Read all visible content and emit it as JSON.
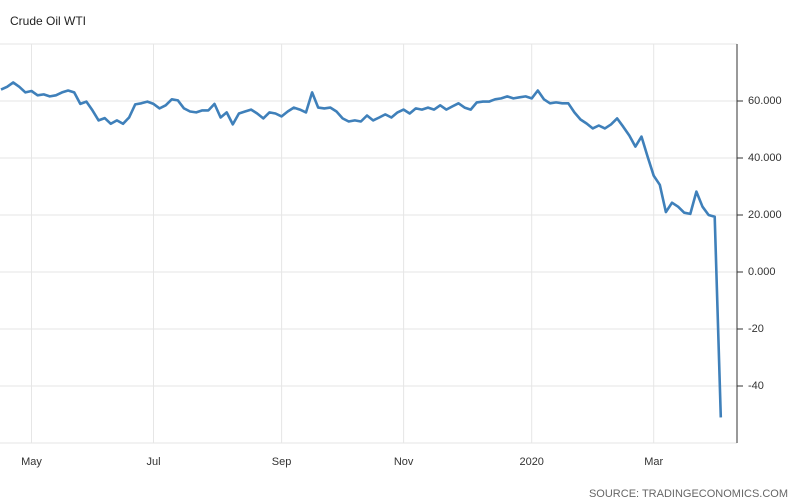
{
  "chart_data": {
    "type": "line",
    "title": "Crude Oil WTI",
    "source": "SOURCE: TRADINGECONOMICS.COM",
    "categories": [
      null,
      null,
      null,
      null,
      null,
      "May",
      null,
      null,
      null,
      null,
      null,
      null,
      null,
      null,
      null,
      null,
      null,
      null,
      null,
      null,
      null,
      null,
      null,
      null,
      null,
      "Jul",
      null,
      null,
      null,
      null,
      null,
      null,
      null,
      null,
      null,
      null,
      null,
      null,
      null,
      null,
      null,
      null,
      null,
      null,
      null,
      null,
      "Sep",
      null,
      null,
      null,
      null,
      null,
      null,
      null,
      null,
      null,
      null,
      null,
      null,
      null,
      null,
      null,
      null,
      null,
      null,
      null,
      "Nov",
      null,
      null,
      null,
      null,
      null,
      null,
      null,
      null,
      null,
      null,
      null,
      null,
      null,
      null,
      null,
      null,
      null,
      null,
      null,
      null,
      "2020",
      null,
      null,
      null,
      null,
      null,
      null,
      null,
      null,
      null,
      null,
      null,
      null,
      null,
      null,
      null,
      null,
      null,
      null,
      null,
      "Mar",
      null,
      null,
      null,
      null,
      null,
      null,
      null,
      null,
      null,
      null,
      null
    ],
    "values": [
      64,
      65,
      66.5,
      65,
      63,
      63.5,
      62,
      62.3,
      61.6,
      62,
      63,
      63.7,
      63,
      59,
      59.8,
      56.7,
      53.2,
      54,
      52,
      53.2,
      52,
      54.2,
      58.8,
      59.2,
      59.8,
      59,
      57.4,
      58.5,
      60.6,
      60.2,
      57.4,
      56.3,
      56,
      56.7,
      56.7,
      59,
      54.2,
      56,
      51.8,
      55.6,
      56.3,
      57,
      55.6,
      53.9,
      56,
      55.6,
      54.6,
      56.3,
      57.7,
      57,
      56,
      63,
      57.7,
      57.4,
      57.7,
      56.3,
      53.9,
      52.8,
      53.2,
      52.8,
      54.9,
      53.2,
      54.2,
      55.3,
      54.2,
      56,
      57,
      55.6,
      57.4,
      57,
      57.7,
      57,
      58.5,
      57,
      58.1,
      59.2,
      57.7,
      57,
      59.5,
      59.8,
      59.8,
      60.6,
      60.9,
      61.6,
      60.9,
      61.3,
      61.6,
      60.9,
      63.7,
      60.6,
      59.2,
      59.5,
      59.2,
      59.2,
      56,
      53.5,
      52.1,
      50.4,
      51.4,
      50.4,
      51.8,
      53.9,
      51,
      47.9,
      44,
      47.5,
      40.5,
      33.8,
      30.6,
      21,
      24.3,
      22.9,
      20.8,
      20.4,
      28.2,
      22.9,
      20,
      19.4,
      -51
    ],
    "color": "#3f80ba",
    "ylim": [
      -60,
      80
    ],
    "yticks": [
      {
        "value": 60,
        "label": "60.000"
      },
      {
        "value": 40,
        "label": "40.000"
      },
      {
        "value": 20,
        "label": "20.000"
      },
      {
        "value": 0,
        "label": "0.000"
      },
      {
        "value": -20,
        "label": "-20"
      },
      {
        "value": -40,
        "label": "-40"
      }
    ],
    "grid": true
  }
}
